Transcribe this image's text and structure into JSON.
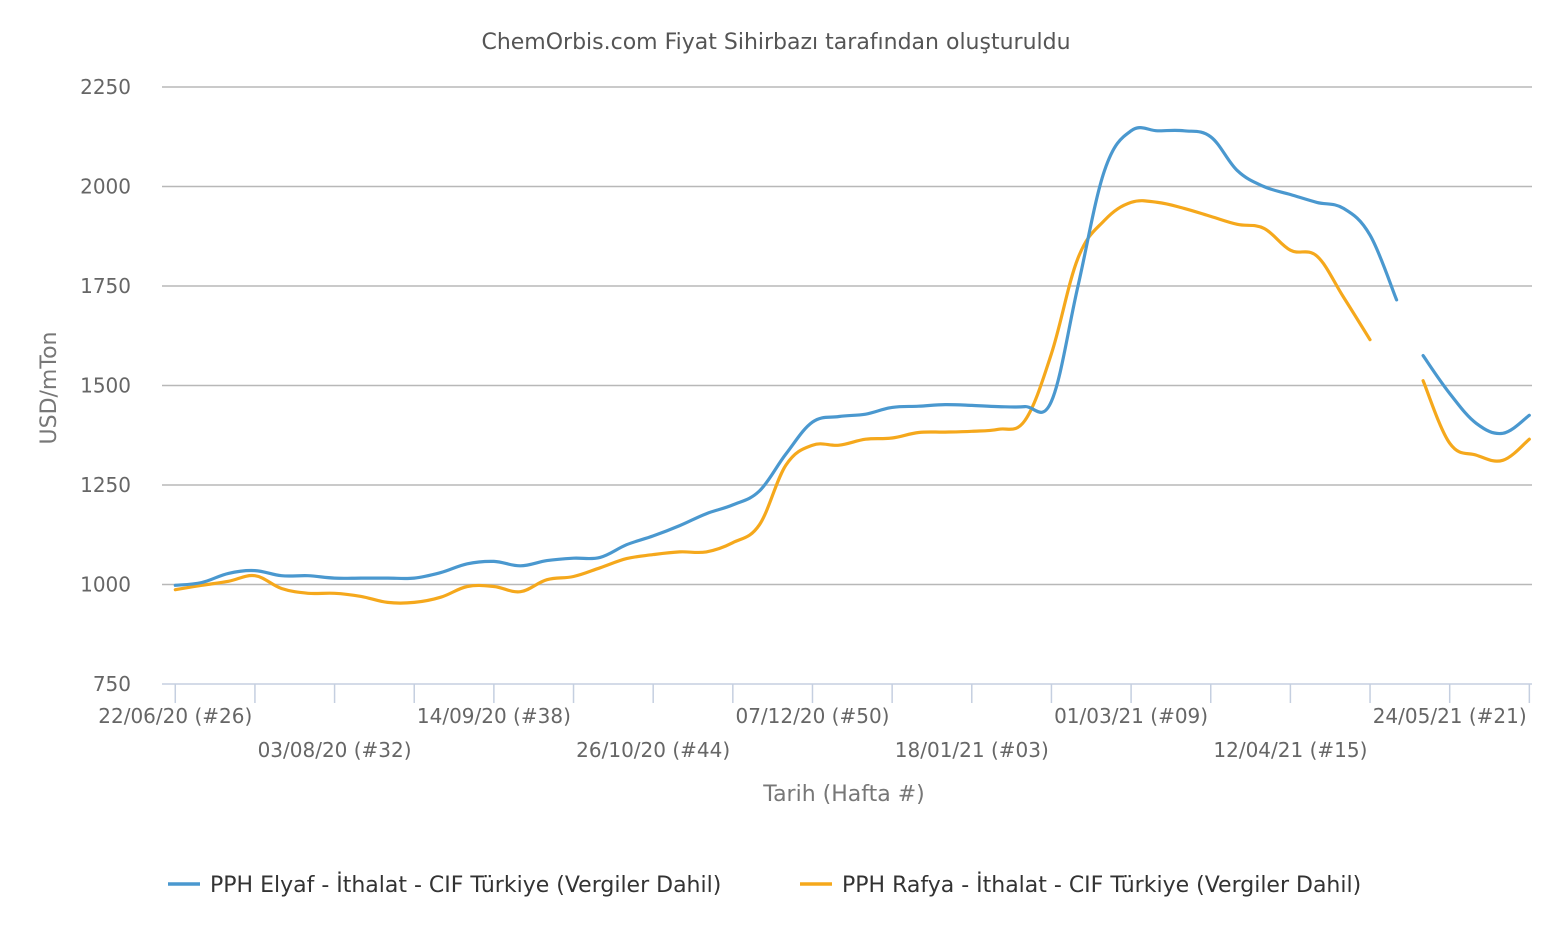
{
  "chart_data": {
    "type": "line",
    "title": "ChemOrbis.com Fiyat Sihirbazı tarafından oluşturuldu",
    "xlabel": "Tarih (Hafta #)",
    "ylabel": "USD/mTon",
    "ylim": [
      750,
      2250
    ],
    "yticks": [
      "750",
      "1000",
      "1250",
      "1500",
      "1750",
      "2000",
      "2250"
    ],
    "grid": true,
    "legend_position": "bottom",
    "x_tick_labels": [
      {
        "week": 0,
        "label": "22/06/20 (#26)"
      },
      {
        "week": 6,
        "label": "03/08/20 (#32)"
      },
      {
        "week": 12,
        "label": "14/09/20 (#38)"
      },
      {
        "week": 18,
        "label": "26/10/20 (#44)"
      },
      {
        "week": 24,
        "label": "07/12/20 (#50)"
      },
      {
        "week": 30,
        "label": "18/01/21 (#03)"
      },
      {
        "week": 36,
        "label": "01/03/21 (#09)"
      },
      {
        "week": 42,
        "label": "12/04/21 (#15)"
      },
      {
        "week": 48,
        "label": "24/05/21 (#21)"
      }
    ],
    "x_ticks_weeks": [
      0,
      3,
      6,
      9,
      12,
      15,
      18,
      21,
      24,
      27,
      30,
      33,
      36,
      39,
      42,
      45,
      48,
      51
    ],
    "x_range_weeks": [
      -0.5,
      51.1
    ],
    "series": [
      {
        "name": "PPH Elyaf - İthalat - CIF Türkiye (Vergiler Dahil)",
        "color": "#4a98cf",
        "points": [
          [
            [
              0,
              998
            ],
            [
              1,
              1005
            ],
            [
              2,
              1028
            ],
            [
              3,
              1035
            ],
            [
              4,
              1022
            ],
            [
              5,
              1022
            ],
            [
              6,
              1016
            ],
            [
              7,
              1016
            ],
            [
              8,
              1016
            ],
            [
              9,
              1016
            ],
            [
              10,
              1030
            ],
            [
              11,
              1052
            ],
            [
              12,
              1058
            ],
            [
              13,
              1047
            ],
            [
              14,
              1060
            ],
            [
              15,
              1066
            ],
            [
              16,
              1068
            ],
            [
              17,
              1100
            ],
            [
              18,
              1122
            ],
            [
              19,
              1148
            ],
            [
              20,
              1178
            ],
            [
              21,
              1200
            ],
            [
              22,
              1235
            ],
            [
              23,
              1328
            ],
            [
              24,
              1408
            ],
            [
              25,
              1422
            ],
            [
              26,
              1428
            ],
            [
              27,
              1445
            ],
            [
              28,
              1448
            ],
            [
              29,
              1452
            ],
            [
              30,
              1450
            ],
            [
              31,
              1447
            ],
            [
              32,
              1447
            ],
            [
              33,
              1460
            ],
            [
              34,
              1750
            ],
            [
              35,
              2040
            ],
            [
              36,
              2140
            ],
            [
              37,
              2140
            ],
            [
              38,
              2140
            ],
            [
              39,
              2125
            ],
            [
              40,
              2040
            ],
            [
              41,
              2000
            ],
            [
              42,
              1980
            ],
            [
              43,
              1960
            ],
            [
              44,
              1945
            ],
            [
              45,
              1878
            ],
            [
              46,
              1715
            ]
          ],
          [
            [
              47,
              1575
            ],
            [
              48,
              1480
            ],
            [
              49,
              1405
            ],
            [
              50,
              1380
            ],
            [
              51,
              1425
            ]
          ]
        ]
      },
      {
        "name": "PPH Rafya - İthalat - CIF Türkiye (Vergiler Dahil)",
        "color": "#f5a81c",
        "points": [
          [
            [
              0,
              987
            ],
            [
              1,
              998
            ],
            [
              2,
              1008
            ],
            [
              3,
              1022
            ],
            [
              4,
              990
            ],
            [
              5,
              978
            ],
            [
              6,
              978
            ],
            [
              7,
              970
            ],
            [
              8,
              955
            ],
            [
              9,
              955
            ],
            [
              10,
              968
            ],
            [
              11,
              995
            ],
            [
              12,
              995
            ],
            [
              13,
              982
            ],
            [
              14,
              1012
            ],
            [
              15,
              1020
            ],
            [
              16,
              1042
            ],
            [
              17,
              1065
            ],
            [
              18,
              1075
            ],
            [
              19,
              1082
            ],
            [
              20,
              1082
            ],
            [
              21,
              1105
            ],
            [
              22,
              1150
            ],
            [
              23,
              1300
            ],
            [
              24,
              1350
            ],
            [
              25,
              1350
            ],
            [
              26,
              1365
            ],
            [
              27,
              1368
            ],
            [
              28,
              1382
            ],
            [
              29,
              1383
            ],
            [
              30,
              1385
            ],
            [
              31,
              1390
            ],
            [
              32,
              1412
            ],
            [
              33,
              1580
            ],
            [
              34,
              1820
            ],
            [
              35,
              1915
            ],
            [
              36,
              1960
            ],
            [
              37,
              1960
            ],
            [
              38,
              1945
            ],
            [
              39,
              1925
            ],
            [
              40,
              1905
            ],
            [
              41,
              1895
            ],
            [
              42,
              1840
            ],
            [
              43,
              1825
            ],
            [
              44,
              1722
            ],
            [
              45,
              1615
            ]
          ],
          [
            [
              47,
              1512
            ],
            [
              48,
              1355
            ],
            [
              49,
              1325
            ],
            [
              50,
              1312
            ],
            [
              51,
              1365
            ]
          ]
        ]
      }
    ]
  }
}
